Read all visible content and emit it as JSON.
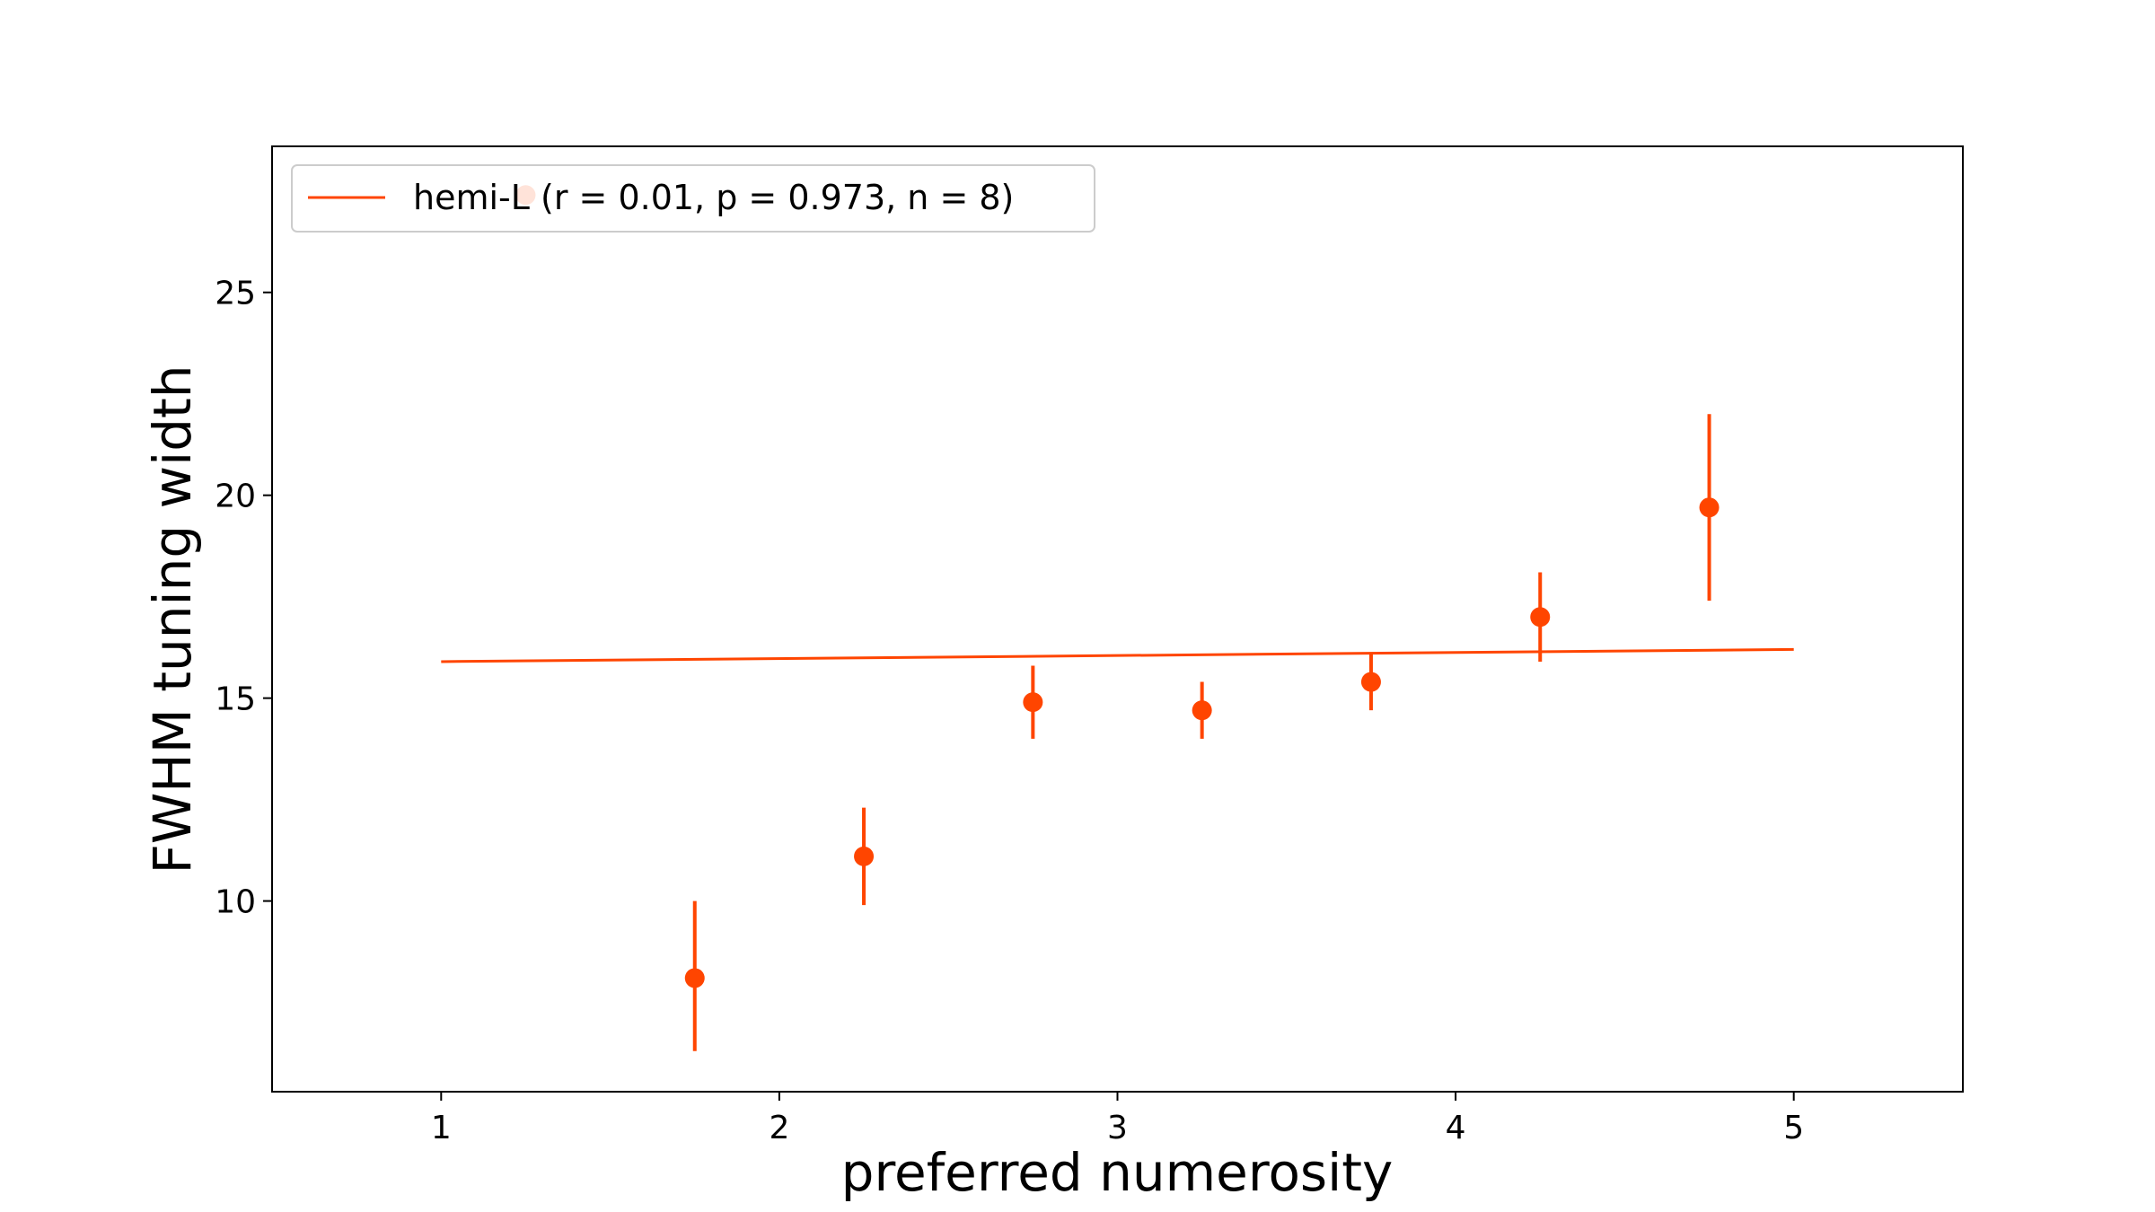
{
  "chart_data": {
    "type": "scatter",
    "xlabel": "preferred numerosity",
    "ylabel": "FWHM tuning width",
    "xlim": [
      0.5,
      5.5
    ],
    "ylim": [
      5.3,
      28.6
    ],
    "xticks": [
      1,
      2,
      3,
      4,
      5
    ],
    "yticks": [
      10,
      15,
      20,
      25
    ],
    "grid": false,
    "legend_position": "top-left",
    "color": "#ff4500",
    "series": [
      {
        "name": "hemi-L (r = 0.01, p = 0.973, n = 8)",
        "kind": "fit-line",
        "x": [
          1,
          5
        ],
        "y": [
          15.9,
          16.2
        ]
      },
      {
        "kind": "points-with-error",
        "x": [
          1.25,
          1.75,
          2.25,
          2.75,
          3.25,
          3.75,
          4.25,
          4.75
        ],
        "y": [
          27.4,
          8.1,
          11.1,
          14.9,
          14.7,
          15.4,
          17.0,
          19.7
        ],
        "yerr_low": [
          27.4,
          6.3,
          9.9,
          14.0,
          14.0,
          14.7,
          15.9,
          17.4
        ],
        "yerr_high": [
          27.4,
          10.0,
          12.3,
          15.8,
          15.4,
          16.1,
          18.1,
          22.0
        ]
      }
    ]
  }
}
